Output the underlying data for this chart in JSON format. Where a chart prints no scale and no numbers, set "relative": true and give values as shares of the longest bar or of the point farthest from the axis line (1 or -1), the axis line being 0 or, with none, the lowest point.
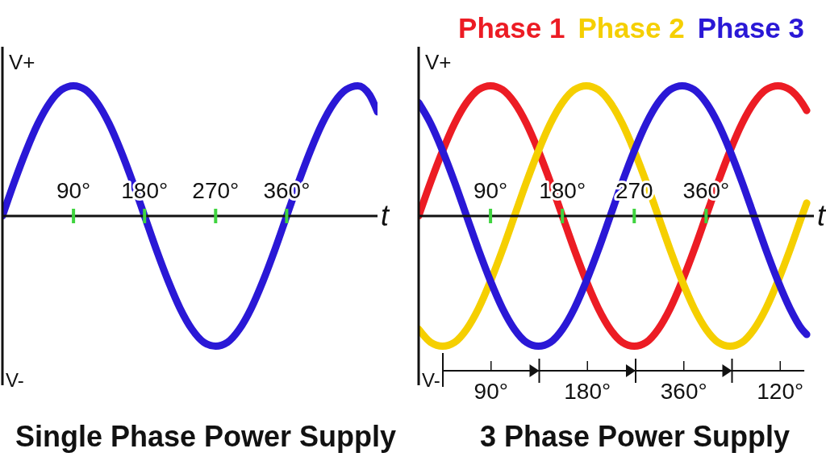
{
  "chart_data": [
    {
      "type": "line",
      "title": "Single Phase Power Supply",
      "xlabel": "t",
      "annotations": [
        "V+",
        "V-"
      ],
      "relative": true,
      "x": [
        0,
        15,
        30,
        45,
        60,
        75,
        90,
        105,
        120,
        135,
        150,
        165,
        180,
        195,
        210,
        225,
        240,
        255,
        270,
        285,
        300,
        315,
        330,
        345,
        360,
        375,
        390,
        405,
        420,
        435,
        450,
        465,
        475
      ],
      "values": [
        0,
        0.26,
        0.5,
        0.71,
        0.87,
        0.97,
        1,
        0.97,
        0.87,
        0.71,
        0.5,
        0.26,
        0,
        -0.26,
        -0.5,
        -0.71,
        -0.87,
        -0.97,
        -1,
        -0.97,
        -0.87,
        -0.71,
        -0.5,
        -0.26,
        0,
        0.26,
        0.5,
        0.71,
        0.87,
        0.97,
        1,
        0.93,
        0.8
      ],
      "color": "#2a18d6",
      "xlim": [
        0,
        475
      ],
      "xticks": [
        {
          "value": 90,
          "label": "90°"
        },
        {
          "value": 180,
          "label": "180°"
        },
        {
          "value": 270,
          "label": "270°"
        },
        {
          "value": 360,
          "label": "360°"
        }
      ]
    },
    {
      "type": "line",
      "title": "3 Phase Power Supply",
      "xlabel": "t",
      "annotations": [
        "V+",
        "V-",
        "90°",
        "180°",
        "360°",
        "120°"
      ],
      "relative": true,
      "legend": "top right",
      "x": [
        0,
        15,
        30,
        45,
        60,
        75,
        90,
        105,
        120,
        135,
        150,
        165,
        180,
        195,
        210,
        225,
        240,
        255,
        270,
        285,
        300,
        315,
        330,
        345,
        360,
        375,
        390,
        405,
        420,
        435,
        450,
        465,
        480,
        486
      ],
      "series": [
        {
          "name": "Phase 1",
          "color": "#ec1c24",
          "values": [
            0,
            0.26,
            0.5,
            0.71,
            0.87,
            0.97,
            1,
            0.97,
            0.87,
            0.71,
            0.5,
            0.26,
            0,
            -0.26,
            -0.5,
            -0.71,
            -0.87,
            -0.97,
            -1,
            -0.97,
            -0.87,
            -0.71,
            -0.5,
            -0.26,
            0,
            0.26,
            0.5,
            0.71,
            0.87,
            0.97,
            1,
            0.97,
            0.87,
            0.81
          ]
        },
        {
          "name": "Phase 2",
          "color": "#f5cf00",
          "values": [
            -0.87,
            -0.97,
            -1,
            -0.97,
            -0.87,
            -0.71,
            -0.5,
            -0.26,
            0,
            0.26,
            0.5,
            0.71,
            0.87,
            0.97,
            1,
            0.97,
            0.87,
            0.71,
            0.5,
            0.26,
            0,
            -0.26,
            -0.5,
            -0.71,
            -0.87,
            -0.97,
            -1,
            -0.97,
            -0.87,
            -0.71,
            -0.5,
            -0.26,
            0,
            0.1
          ]
        },
        {
          "name": "Phase 3",
          "color": "#2a18d6",
          "values": [
            0.87,
            0.71,
            0.5,
            0.26,
            0,
            -0.26,
            -0.5,
            -0.71,
            -0.87,
            -0.97,
            -1,
            -0.97,
            -0.87,
            -0.71,
            -0.5,
            -0.26,
            0,
            0.26,
            0.5,
            0.71,
            0.87,
            0.97,
            1,
            0.97,
            0.87,
            0.71,
            0.5,
            0.26,
            0,
            -0.26,
            -0.5,
            -0.71,
            -0.87,
            -0.91
          ]
        }
      ],
      "xlim": [
        0,
        495
      ],
      "xticks": [
        {
          "value": 90,
          "label": "90°"
        },
        {
          "value": 180,
          "label": "180°"
        },
        {
          "value": 270,
          "label": "270"
        },
        {
          "value": 360,
          "label": "360°"
        }
      ]
    }
  ]
}
